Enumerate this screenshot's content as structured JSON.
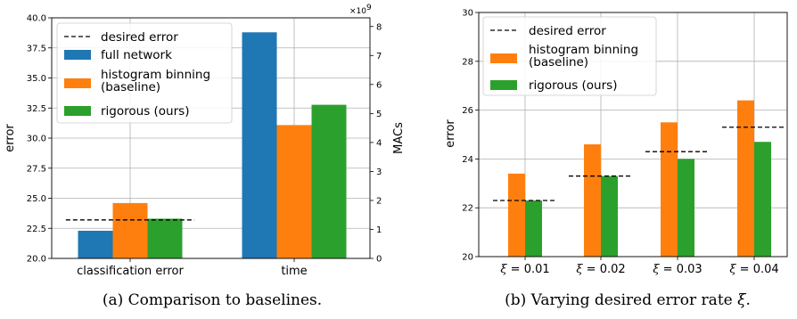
{
  "chart_data": [
    {
      "type": "bar",
      "caption": "(a) Comparison to baselines.",
      "categories": [
        "classification error",
        "time"
      ],
      "ylabel": "error",
      "ylim": [
        20.0,
        40.0
      ],
      "yticks": [
        "20.0",
        "22.5",
        "25.0",
        "27.5",
        "30.0",
        "32.5",
        "35.0",
        "37.5",
        "40.0"
      ],
      "y2label": "MACs",
      "y2lim": [
        0,
        8.3
      ],
      "y2ticks": [
        "0",
        "1",
        "2",
        "3",
        "4",
        "5",
        "6",
        "7",
        "8"
      ],
      "y2exponent": "×10",
      "y2exponent_power": "9",
      "desired_error": 23.2,
      "series": [
        {
          "name": "full network",
          "color": "#1f77b4",
          "error": 22.3,
          "macs": 7.8
        },
        {
          "name": "histogram binning",
          "name_line2": "(baseline)",
          "color": "#ff7f0e",
          "error": 24.6,
          "macs": 4.6
        },
        {
          "name": "rigorous (ours)",
          "color": "#2ca02c",
          "error": 23.3,
          "macs": 5.3
        }
      ],
      "legend": {
        "placement": "upper-left",
        "desired_label": "desired error"
      },
      "grid": true
    },
    {
      "type": "bar",
      "caption_prefix": "(b) Varying desired error rate",
      "caption_symbol": "ξ",
      "caption_suffix": ".",
      "categories": [
        "ξ = 0.01",
        "ξ = 0.02",
        "ξ = 0.03",
        "ξ = 0.04"
      ],
      "category_symbol": "ξ",
      "category_values": [
        "= 0.01",
        "= 0.02",
        "= 0.03",
        "= 0.04"
      ],
      "ylabel": "error",
      "ylim": [
        20,
        30
      ],
      "yticks": [
        "20",
        "22",
        "24",
        "26",
        "28",
        "30"
      ],
      "desired_error": [
        22.3,
        23.3,
        24.3,
        25.3
      ],
      "series": [
        {
          "name": "histogram binning",
          "name_line2": "(baseline)",
          "color": "#ff7f0e",
          "values": [
            23.4,
            24.6,
            25.5,
            26.4
          ]
        },
        {
          "name": "rigorous (ours)",
          "color": "#2ca02c",
          "values": [
            22.3,
            23.3,
            24.0,
            24.7
          ]
        }
      ],
      "legend": {
        "placement": "upper-left",
        "desired_label": "desired error"
      },
      "grid": true
    }
  ]
}
